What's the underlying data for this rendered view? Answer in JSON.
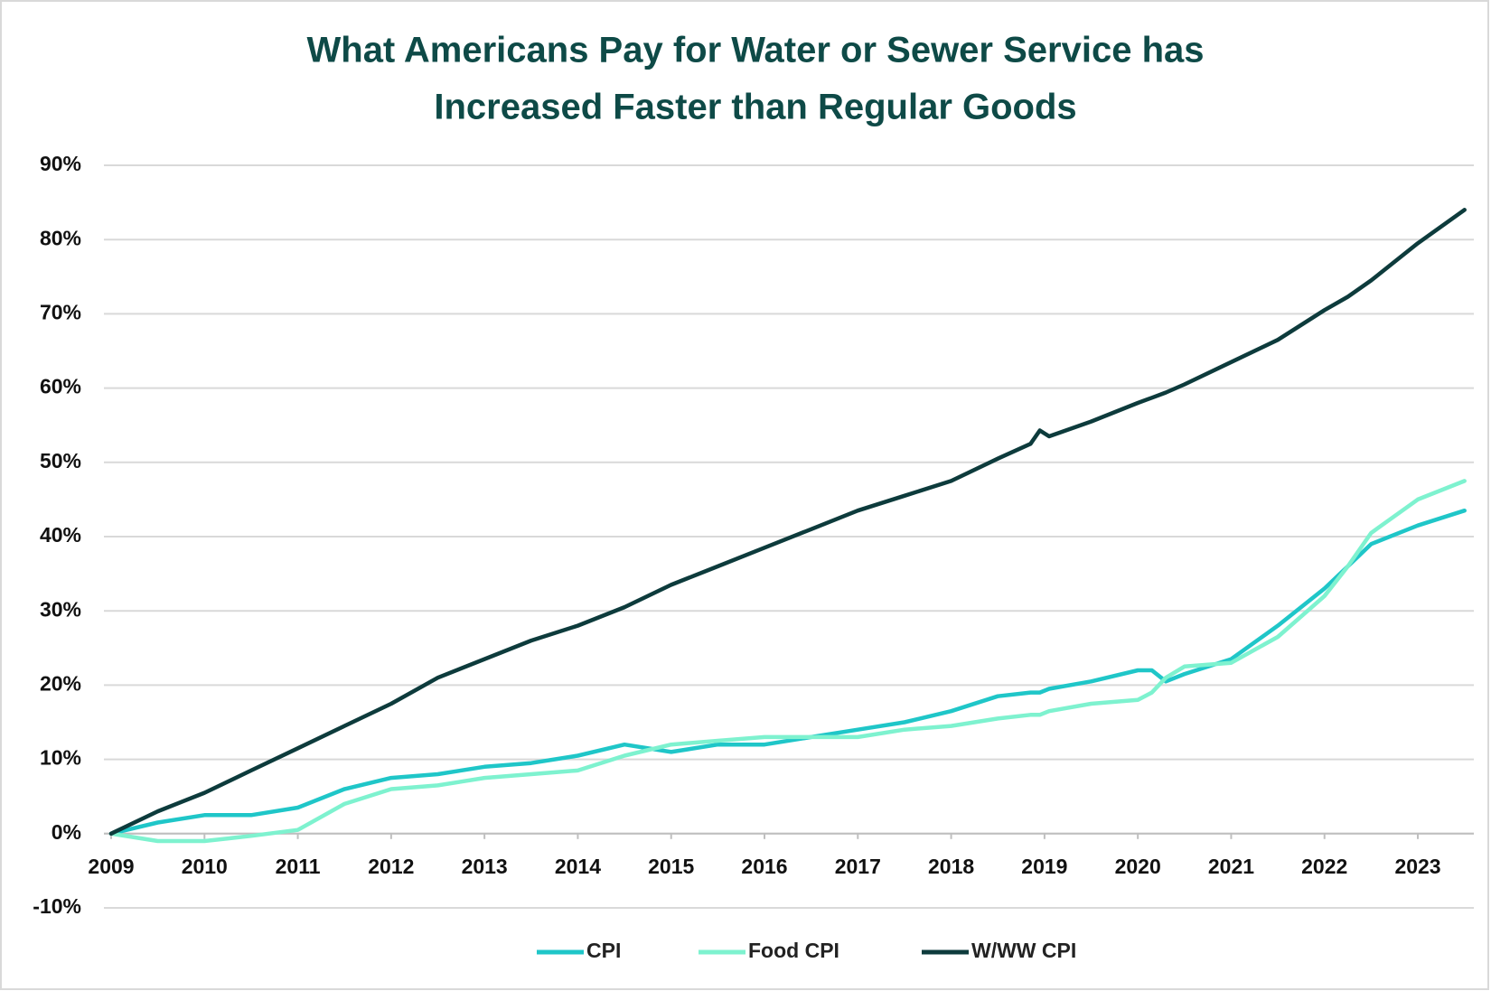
{
  "chart_data": {
    "type": "line",
    "title": [
      "What Americans Pay for Water or Sewer Service has",
      "Increased Faster than Regular Goods"
    ],
    "x": [
      2009,
      2009.5,
      2010,
      2010.5,
      2011,
      2011.5,
      2012,
      2012.5,
      2013,
      2013.5,
      2014,
      2014.5,
      2015,
      2015.5,
      2016,
      2016.5,
      2017,
      2017.5,
      2018,
      2018.5,
      2018.85,
      2018.95,
      2019.05,
      2019.5,
      2020,
      2020.15,
      2020.3,
      2020.5,
      2021,
      2021.5,
      2022,
      2022.25,
      2022.5,
      2023,
      2023.5
    ],
    "series": [
      {
        "name": "CPI",
        "color": "#1fc6c8",
        "values": [
          0,
          1.5,
          2.5,
          2.5,
          3.5,
          6,
          7.5,
          8,
          9,
          9.5,
          10.5,
          12,
          11,
          12,
          12,
          13,
          14,
          15,
          16.5,
          18.5,
          19,
          19,
          19.5,
          20.5,
          22,
          22,
          20.5,
          21.5,
          23.5,
          28,
          33,
          36,
          39,
          41.5,
          43.5
        ]
      },
      {
        "name": "Food CPI",
        "color": "#7ef2cf",
        "values": [
          0,
          -1,
          -1,
          -0.3,
          0.5,
          4,
          6,
          6.5,
          7.5,
          8,
          8.5,
          10.5,
          12,
          12.5,
          13,
          13,
          13,
          14,
          14.5,
          15.5,
          16,
          16,
          16.5,
          17.5,
          18,
          19,
          21,
          22.5,
          23,
          26.5,
          32,
          36,
          40.5,
          45,
          47.5
        ]
      },
      {
        "name": "W/WW CPI",
        "color": "#0d3b3c",
        "values": [
          0,
          3,
          5.5,
          8.5,
          11.5,
          14.5,
          17.5,
          21,
          23.5,
          26,
          28,
          30.5,
          33.5,
          36,
          38.5,
          41,
          43.5,
          45.5,
          47.5,
          50.5,
          52.5,
          54.3,
          53.5,
          55.5,
          58,
          58.7,
          59.4,
          60.5,
          63.5,
          66.5,
          70.5,
          72.3,
          74.5,
          79.5,
          84
        ]
      }
    ],
    "xlim": [
      2009,
      2023.6
    ],
    "xticks": [
      2009,
      2010,
      2011,
      2012,
      2013,
      2014,
      2015,
      2016,
      2017,
      2018,
      2019,
      2020,
      2021,
      2022,
      2023
    ],
    "ylim": [
      -10,
      90
    ],
    "yticks": [
      {
        "value": -10,
        "label": "-10%"
      },
      {
        "value": 0,
        "label": "0%"
      },
      {
        "value": 10,
        "label": "10%"
      },
      {
        "value": 20,
        "label": "20%"
      },
      {
        "value": 30,
        "label": "30%"
      },
      {
        "value": 40,
        "label": "40%"
      },
      {
        "value": 50,
        "label": "50%"
      },
      {
        "value": 60,
        "label": "60%"
      },
      {
        "value": 70,
        "label": "70%"
      },
      {
        "value": 80,
        "label": "80%"
      },
      {
        "value": 90,
        "label": "90%"
      }
    ],
    "grid": true,
    "legend": "bottom"
  }
}
